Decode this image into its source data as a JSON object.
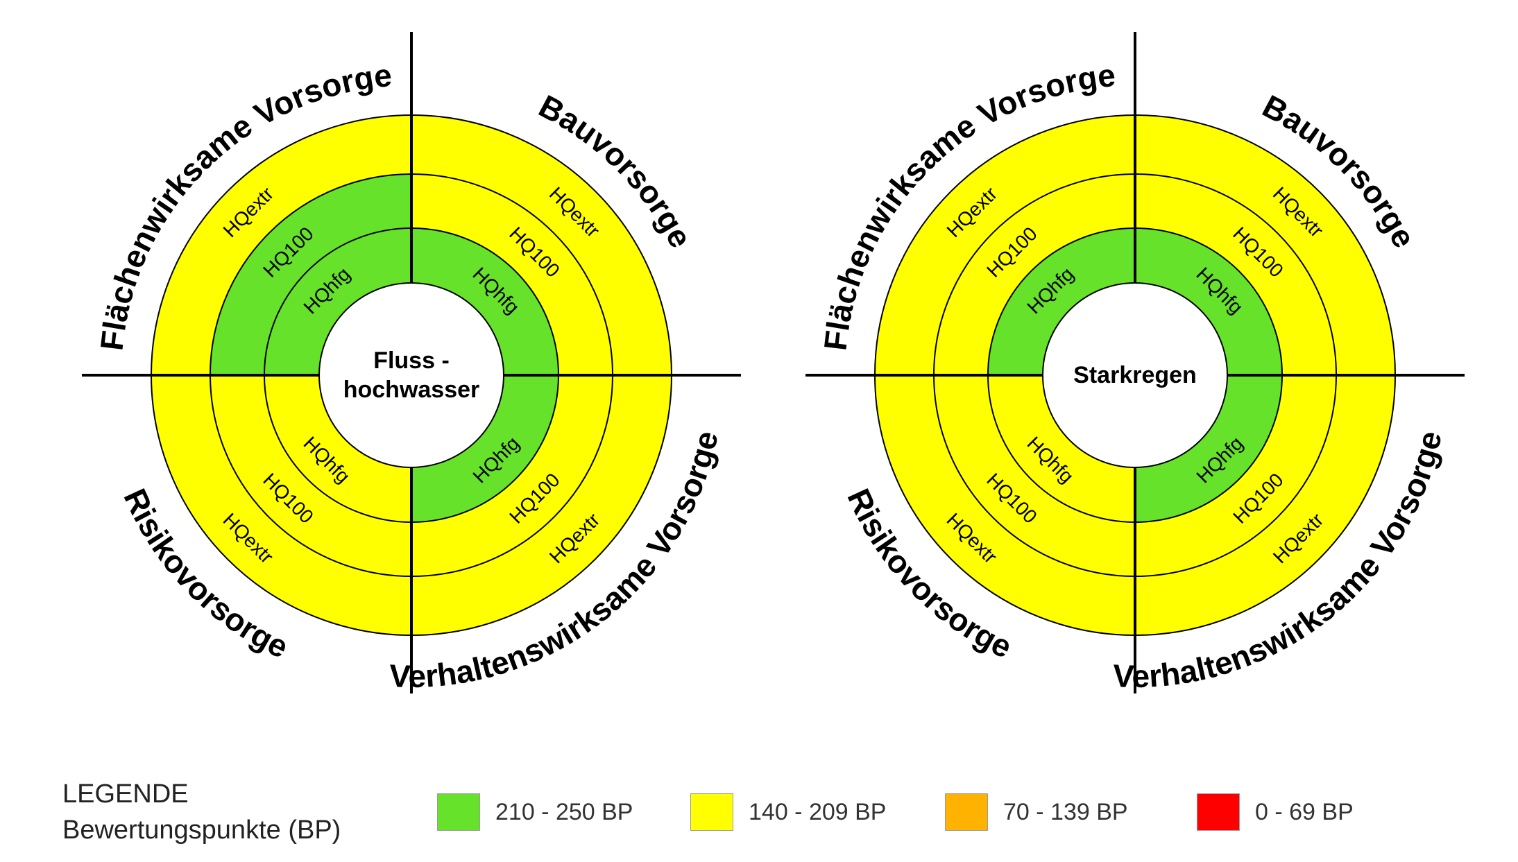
{
  "colors": {
    "green": "#66e22a",
    "yellow": "#ffff00",
    "orange": "#ffb300",
    "red": "#ff0000"
  },
  "charts": [
    {
      "center_lines": [
        "Fluss -",
        "hochwasser"
      ],
      "sectors": [
        "Flächenwirksame Vorsorge",
        "Bauvorsorge",
        "Verhaltenswirksame Vorsorge",
        "Risikovorsorge"
      ],
      "rings": [
        "HQhfg",
        "HQ100",
        "HQextr"
      ],
      "quadrants": [
        {
          "sector": "Flächenwirksame Vorsorge",
          "HQhfg": "green",
          "HQ100": "green",
          "HQextr": "yellow"
        },
        {
          "sector": "Bauvorsorge",
          "HQhfg": "green",
          "HQ100": "yellow",
          "HQextr": "yellow"
        },
        {
          "sector": "Verhaltenswirksame Vorsorge",
          "HQhfg": "green",
          "HQ100": "yellow",
          "HQextr": "yellow"
        },
        {
          "sector": "Risikovorsorge",
          "HQhfg": "yellow",
          "HQ100": "yellow",
          "HQextr": "yellow"
        }
      ]
    },
    {
      "center_lines": [
        "Starkregen"
      ],
      "sectors": [
        "Flächenwirksame Vorsorge",
        "Bauvorsorge",
        "Verhaltenswirksame Vorsorge",
        "Risikovorsorge"
      ],
      "rings": [
        "HQhfg",
        "HQ100",
        "HQextr"
      ],
      "quadrants": [
        {
          "sector": "Flächenwirksame Vorsorge",
          "HQhfg": "green",
          "HQ100": "yellow",
          "HQextr": "yellow"
        },
        {
          "sector": "Bauvorsorge",
          "HQhfg": "green",
          "HQ100": "yellow",
          "HQextr": "yellow"
        },
        {
          "sector": "Verhaltenswirksame Vorsorge",
          "HQhfg": "green",
          "HQ100": "yellow",
          "HQextr": "yellow"
        },
        {
          "sector": "Risikovorsorge",
          "HQhfg": "yellow",
          "HQ100": "yellow",
          "HQextr": "yellow"
        }
      ]
    }
  ],
  "legend": {
    "title": "LEGENDE",
    "subtitle": "Bewertungspunkte (BP)",
    "items": [
      {
        "label": "210 - 250 BP",
        "color": "green"
      },
      {
        "label": "140 - 209 BP",
        "color": "yellow"
      },
      {
        "label": "70 - 139 BP",
        "color": "orange"
      },
      {
        "label": "0 - 69 BP",
        "color": "red"
      }
    ]
  }
}
